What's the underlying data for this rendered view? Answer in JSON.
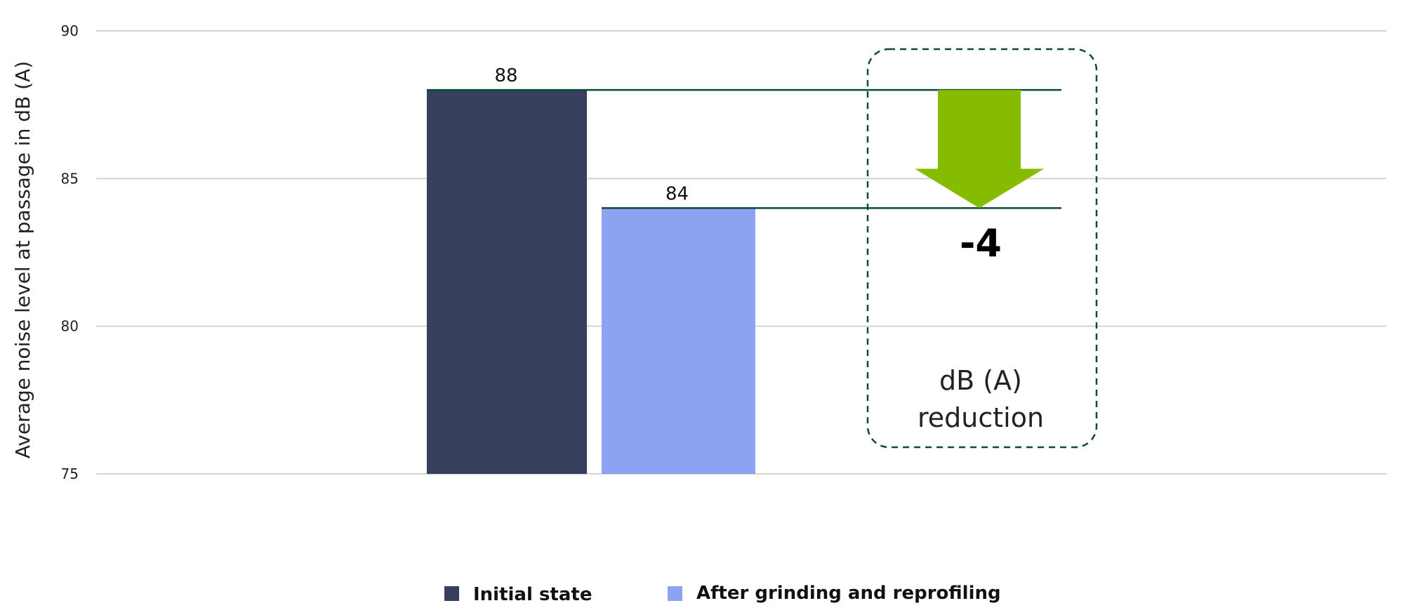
{
  "chart_data": {
    "type": "bar",
    "ylabel": "Average noise level at passage in dB (A)",
    "ylim": [
      75,
      90
    ],
    "yticks": [
      75,
      80,
      85,
      90
    ],
    "grid": true,
    "series": [
      {
        "name": "Initial state",
        "values": [
          88
        ],
        "color": "#363f5c"
      },
      {
        "name": "After grinding and reprofiling",
        "values": [
          84
        ],
        "color": "#8ca3f2"
      }
    ],
    "data_labels": [
      "88",
      "84"
    ],
    "annotation": {
      "delta": "-4",
      "line1": "dB (A)",
      "line2": "reduction",
      "arrow_color": "#86bc00",
      "box_color": "#0e4a34",
      "line_color": "#0e4a34"
    },
    "legend_position": "bottom-center"
  }
}
